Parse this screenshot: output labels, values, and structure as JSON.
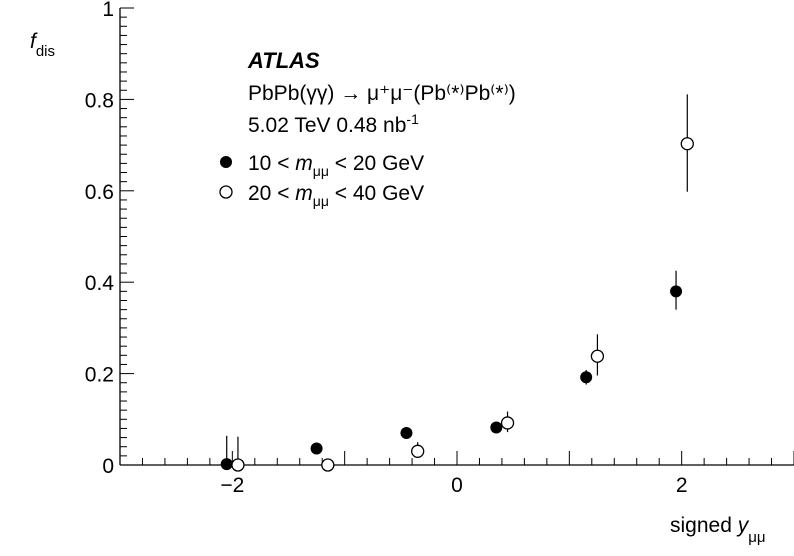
{
  "chart_data": {
    "type": "scatter",
    "title": "",
    "xlabel": {
      "main": "signed",
      "var": "y",
      "sub": "μμ"
    },
    "ylabel": {
      "var": "f",
      "sub": "dis"
    },
    "xlim": [
      -3,
      3
    ],
    "ylim": [
      0,
      1
    ],
    "x_ticks": [
      -2,
      0,
      2
    ],
    "x_tick_labels": [
      "−2",
      "0",
      "2"
    ],
    "y_ticks": [
      0,
      0.2,
      0.4,
      0.6,
      0.8,
      1
    ],
    "y_tick_labels": [
      "0",
      "0.2",
      "0.4",
      "0.6",
      "0.8",
      "1"
    ],
    "grid": false,
    "legend_position": "top-left",
    "annotations": {
      "experiment": "ATLAS",
      "process": "PbPb(γγ) → μ⁺μ⁻(Pb⁽*⁾Pb⁽*⁾)",
      "energy_base": "5.02 TeV 0.48 nb",
      "energy_sup": "-1"
    },
    "series": [
      {
        "name": "10 < mμμ < 20 GeV",
        "legend": {
          "pre": "10 < ",
          "var": "m",
          "sub": "μμ",
          "post": " < 20 GeV"
        },
        "marker": "filled-circle",
        "color": "#000000",
        "points": [
          {
            "x": -2.05,
            "y": 0.002,
            "err_low": 0.002,
            "err_high": 0.062
          },
          {
            "x": -1.25,
            "y": 0.036,
            "err_low": 0.004,
            "err_high": 0.004
          },
          {
            "x": -0.45,
            "y": 0.07,
            "err_low": 0.005,
            "err_high": 0.005
          },
          {
            "x": 0.35,
            "y": 0.082,
            "err_low": 0.008,
            "err_high": 0.008
          },
          {
            "x": 1.15,
            "y": 0.192,
            "err_low": 0.016,
            "err_high": 0.016
          },
          {
            "x": 1.95,
            "y": 0.38,
            "err_low": 0.04,
            "err_high": 0.045
          }
        ]
      },
      {
        "name": "20 < mμμ < 40 GeV",
        "legend": {
          "pre": "20 < ",
          "var": "m",
          "sub": "μμ",
          "post": " < 40 GeV"
        },
        "marker": "open-circle",
        "color": "#000000",
        "points": [
          {
            "x": -1.95,
            "y": 0.0,
            "err_low": 0.0,
            "err_high": 0.062
          },
          {
            "x": -1.15,
            "y": 0.0,
            "err_low": 0.0,
            "err_high": 0.0
          },
          {
            "x": -0.35,
            "y": 0.03,
            "err_low": 0.012,
            "err_high": 0.02
          },
          {
            "x": 0.45,
            "y": 0.092,
            "err_low": 0.02,
            "err_high": 0.025
          },
          {
            "x": 1.25,
            "y": 0.238,
            "err_low": 0.042,
            "err_high": 0.048
          },
          {
            "x": 2.05,
            "y": 0.703,
            "err_low": 0.105,
            "err_high": 0.108
          }
        ]
      }
    ]
  }
}
